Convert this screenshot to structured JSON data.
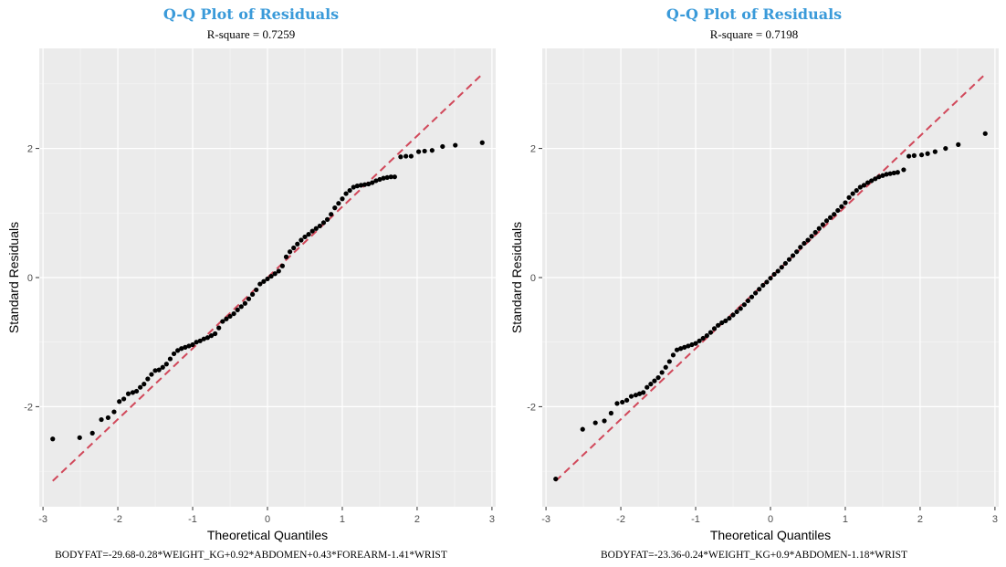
{
  "chart_data": [
    {
      "type": "scatter",
      "title": "Q-Q Plot of Residuals",
      "subtitle": "R-square = 0.7259",
      "xlabel": "Theoretical Quantiles",
      "ylabel": "Standard Residuals",
      "caption": "BODYFAT=-29.68-0.28*WEIGHT_KG+0.92*ABDOMEN+0.43*FOREARM-1.41*WRIST",
      "xlim": [
        -3.05,
        3.05
      ],
      "ylim": [
        -3.55,
        3.55
      ],
      "x_ticks": [
        -3,
        -2,
        -1,
        0,
        1,
        2,
        3
      ],
      "x_tick_labels": [
        "-3",
        "-2",
        "-1",
        "0",
        "1",
        "2",
        "3"
      ],
      "y_ticks": [
        -2,
        0,
        2
      ],
      "y_tick_labels": [
        "-2",
        "0",
        "2"
      ],
      "reference_line": {
        "from": [
          -2.87,
          -3.15
        ],
        "to": [
          2.87,
          3.15
        ],
        "color": "#d1495b",
        "style": "dashed"
      },
      "point_color": "#000000",
      "panel_color": "#ebebeb",
      "grid": true,
      "points": [
        [
          -2.87,
          -2.5
        ],
        [
          -2.51,
          -2.48
        ],
        [
          -2.34,
          -2.41
        ],
        [
          -2.22,
          -2.2
        ],
        [
          -2.13,
          -2.17
        ],
        [
          -2.05,
          -2.08
        ],
        [
          -1.98,
          -1.92
        ],
        [
          -1.92,
          -1.88
        ],
        [
          -1.86,
          -1.8
        ],
        [
          -1.8,
          -1.78
        ],
        [
          -1.75,
          -1.76
        ],
        [
          -1.7,
          -1.7
        ],
        [
          -1.65,
          -1.65
        ],
        [
          -1.6,
          -1.57
        ],
        [
          -1.55,
          -1.5
        ],
        [
          -1.5,
          -1.44
        ],
        [
          -1.45,
          -1.43
        ],
        [
          -1.4,
          -1.39
        ],
        [
          -1.35,
          -1.34
        ],
        [
          -1.3,
          -1.26
        ],
        [
          -1.25,
          -1.18
        ],
        [
          -1.2,
          -1.13
        ],
        [
          -1.15,
          -1.1
        ],
        [
          -1.1,
          -1.08
        ],
        [
          -1.05,
          -1.06
        ],
        [
          -1.0,
          -1.04
        ],
        [
          -0.95,
          -1.0
        ],
        [
          -0.9,
          -0.98
        ],
        [
          -0.85,
          -0.95
        ],
        [
          -0.8,
          -0.93
        ],
        [
          -0.75,
          -0.9
        ],
        [
          -0.7,
          -0.87
        ],
        [
          -0.65,
          -0.78
        ],
        [
          -0.6,
          -0.68
        ],
        [
          -0.55,
          -0.64
        ],
        [
          -0.5,
          -0.6
        ],
        [
          -0.45,
          -0.56
        ],
        [
          -0.4,
          -0.5
        ],
        [
          -0.35,
          -0.45
        ],
        [
          -0.3,
          -0.4
        ],
        [
          -0.25,
          -0.33
        ],
        [
          -0.2,
          -0.26
        ],
        [
          -0.15,
          -0.19
        ],
        [
          -0.1,
          -0.1
        ],
        [
          -0.05,
          -0.06
        ],
        [
          0.0,
          -0.02
        ],
        [
          0.05,
          0.02
        ],
        [
          0.1,
          0.06
        ],
        [
          0.15,
          0.1
        ],
        [
          0.2,
          0.18
        ],
        [
          0.25,
          0.32
        ],
        [
          0.3,
          0.4
        ],
        [
          0.35,
          0.46
        ],
        [
          0.4,
          0.52
        ],
        [
          0.45,
          0.58
        ],
        [
          0.5,
          0.63
        ],
        [
          0.55,
          0.67
        ],
        [
          0.6,
          0.72
        ],
        [
          0.65,
          0.76
        ],
        [
          0.7,
          0.8
        ],
        [
          0.75,
          0.85
        ],
        [
          0.8,
          0.9
        ],
        [
          0.85,
          0.98
        ],
        [
          0.9,
          1.08
        ],
        [
          0.95,
          1.15
        ],
        [
          1.0,
          1.22
        ],
        [
          1.05,
          1.3
        ],
        [
          1.1,
          1.35
        ],
        [
          1.15,
          1.4
        ],
        [
          1.2,
          1.42
        ],
        [
          1.25,
          1.43
        ],
        [
          1.3,
          1.44
        ],
        [
          1.35,
          1.45
        ],
        [
          1.4,
          1.47
        ],
        [
          1.45,
          1.5
        ],
        [
          1.5,
          1.52
        ],
        [
          1.55,
          1.54
        ],
        [
          1.6,
          1.55
        ],
        [
          1.65,
          1.56
        ],
        [
          1.7,
          1.56
        ],
        [
          1.78,
          1.87
        ],
        [
          1.85,
          1.88
        ],
        [
          1.92,
          1.88
        ],
        [
          2.02,
          1.95
        ],
        [
          2.1,
          1.96
        ],
        [
          2.2,
          1.97
        ],
        [
          2.34,
          2.03
        ],
        [
          2.51,
          2.05
        ],
        [
          2.87,
          2.09
        ]
      ]
    },
    {
      "type": "scatter",
      "title": "Q-Q Plot of Residuals",
      "subtitle": "R-square = 0.7198",
      "xlabel": "Theoretical Quantiles",
      "ylabel": "Standard Residuals",
      "caption": "BODYFAT=-23.36-0.24*WEIGHT_KG+0.9*ABDOMEN-1.18*WRIST",
      "xlim": [
        -3.05,
        3.05
      ],
      "ylim": [
        -3.55,
        3.55
      ],
      "x_ticks": [
        -3,
        -2,
        -1,
        0,
        1,
        2,
        3
      ],
      "x_tick_labels": [
        "-3",
        "-2",
        "-1",
        "0",
        "1",
        "2",
        "3"
      ],
      "y_ticks": [
        -2,
        0,
        2
      ],
      "y_tick_labels": [
        "-2",
        "0",
        "2"
      ],
      "reference_line": {
        "from": [
          -2.87,
          -3.15
        ],
        "to": [
          2.87,
          3.15
        ],
        "color": "#d1495b",
        "style": "dashed"
      },
      "point_color": "#000000",
      "panel_color": "#ebebeb",
      "grid": true,
      "points": [
        [
          -2.87,
          -3.12
        ],
        [
          -2.51,
          -2.35
        ],
        [
          -2.34,
          -2.25
        ],
        [
          -2.22,
          -2.22
        ],
        [
          -2.13,
          -2.1
        ],
        [
          -2.05,
          -1.95
        ],
        [
          -1.98,
          -1.93
        ],
        [
          -1.92,
          -1.9
        ],
        [
          -1.86,
          -1.84
        ],
        [
          -1.8,
          -1.82
        ],
        [
          -1.75,
          -1.8
        ],
        [
          -1.7,
          -1.78
        ],
        [
          -1.65,
          -1.7
        ],
        [
          -1.6,
          -1.65
        ],
        [
          -1.55,
          -1.6
        ],
        [
          -1.5,
          -1.55
        ],
        [
          -1.45,
          -1.47
        ],
        [
          -1.4,
          -1.39
        ],
        [
          -1.35,
          -1.3
        ],
        [
          -1.3,
          -1.2
        ],
        [
          -1.25,
          -1.12
        ],
        [
          -1.2,
          -1.1
        ],
        [
          -1.15,
          -1.08
        ],
        [
          -1.1,
          -1.06
        ],
        [
          -1.05,
          -1.04
        ],
        [
          -1.0,
          -1.02
        ],
        [
          -0.95,
          -0.98
        ],
        [
          -0.9,
          -0.94
        ],
        [
          -0.85,
          -0.9
        ],
        [
          -0.8,
          -0.85
        ],
        [
          -0.75,
          -0.79
        ],
        [
          -0.7,
          -0.74
        ],
        [
          -0.65,
          -0.7
        ],
        [
          -0.6,
          -0.67
        ],
        [
          -0.55,
          -0.63
        ],
        [
          -0.5,
          -0.58
        ],
        [
          -0.45,
          -0.53
        ],
        [
          -0.4,
          -0.48
        ],
        [
          -0.35,
          -0.42
        ],
        [
          -0.3,
          -0.36
        ],
        [
          -0.25,
          -0.3
        ],
        [
          -0.2,
          -0.24
        ],
        [
          -0.15,
          -0.18
        ],
        [
          -0.1,
          -0.12
        ],
        [
          -0.05,
          -0.07
        ],
        [
          0.0,
          -0.01
        ],
        [
          0.05,
          0.05
        ],
        [
          0.1,
          0.1
        ],
        [
          0.15,
          0.16
        ],
        [
          0.2,
          0.22
        ],
        [
          0.25,
          0.28
        ],
        [
          0.3,
          0.34
        ],
        [
          0.35,
          0.4
        ],
        [
          0.4,
          0.47
        ],
        [
          0.45,
          0.53
        ],
        [
          0.5,
          0.58
        ],
        [
          0.55,
          0.64
        ],
        [
          0.6,
          0.7
        ],
        [
          0.65,
          0.76
        ],
        [
          0.7,
          0.82
        ],
        [
          0.75,
          0.88
        ],
        [
          0.8,
          0.93
        ],
        [
          0.85,
          0.98
        ],
        [
          0.9,
          1.04
        ],
        [
          0.95,
          1.1
        ],
        [
          1.0,
          1.16
        ],
        [
          1.05,
          1.24
        ],
        [
          1.1,
          1.3
        ],
        [
          1.15,
          1.35
        ],
        [
          1.2,
          1.4
        ],
        [
          1.25,
          1.43
        ],
        [
          1.3,
          1.47
        ],
        [
          1.35,
          1.5
        ],
        [
          1.4,
          1.53
        ],
        [
          1.45,
          1.56
        ],
        [
          1.5,
          1.58
        ],
        [
          1.55,
          1.6
        ],
        [
          1.6,
          1.61
        ],
        [
          1.65,
          1.62
        ],
        [
          1.7,
          1.63
        ],
        [
          1.78,
          1.67
        ],
        [
          1.85,
          1.88
        ],
        [
          1.92,
          1.89
        ],
        [
          2.02,
          1.9
        ],
        [
          2.1,
          1.92
        ],
        [
          2.2,
          1.95
        ],
        [
          2.34,
          2.0
        ],
        [
          2.51,
          2.06
        ],
        [
          2.87,
          2.23
        ]
      ]
    }
  ]
}
